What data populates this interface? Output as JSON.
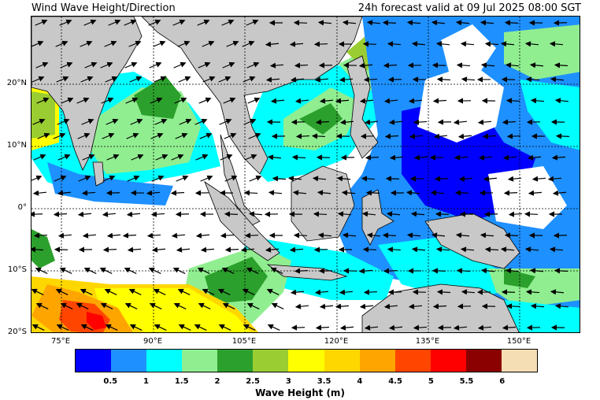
{
  "header": {
    "title": "Wind Wave Height/Direction",
    "forecast": "24h forecast valid at 09 Jul 2025 08:00 SGT"
  },
  "map": {
    "lat_labels": [
      "20°N",
      "10°N",
      "0°",
      "10°S",
      "20°S"
    ],
    "lon_labels": [
      "75°E",
      "90°E",
      "105°E",
      "120°E",
      "135°E",
      "150°E"
    ],
    "land_color": "#c8c8c8",
    "no_data_color": "#ffffff"
  },
  "legend": {
    "title": "Wave Height (m)",
    "tick_labels": [
      "0.5",
      "1",
      "1.5",
      "2",
      "2.5",
      "3",
      "3.5",
      "4",
      "4.5",
      "5",
      "5.5",
      "6"
    ],
    "colors": [
      "#0000ff",
      "#1e90ff",
      "#00ffff",
      "#90ee90",
      "#2ca02c",
      "#9acd32",
      "#ffff00",
      "#ffd700",
      "#ffa500",
      "#ff4500",
      "#ff0000",
      "#8b0000",
      "#f5deb3"
    ]
  }
}
